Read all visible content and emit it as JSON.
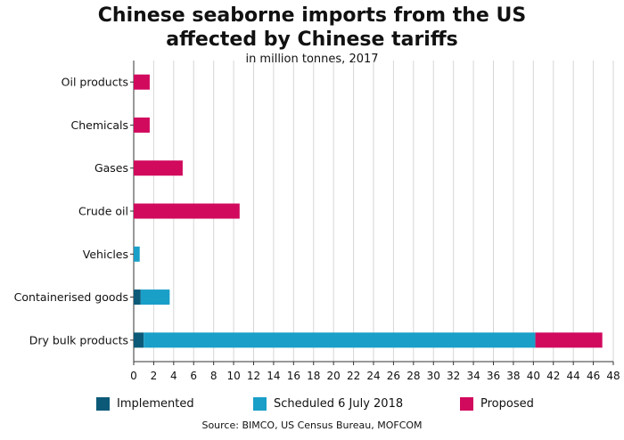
{
  "chart_data": {
    "type": "bar",
    "orientation": "horizontal",
    "stacked": true,
    "title_lines": [
      "Chinese seaborne imports from the US",
      "affected by Chinese tariffs"
    ],
    "subtitle": "in million tonnes, 2017",
    "categories": [
      "Oil products",
      "Chemicals",
      "Gases",
      "Crude oil",
      "Vehicles",
      "Containerised goods",
      "Dry bulk products"
    ],
    "series": [
      {
        "name": "Implemented",
        "color": "#0c5a78",
        "values": [
          0,
          0,
          0,
          0,
          0,
          0.7,
          1.0
        ]
      },
      {
        "name": "Scheduled 6 July 2018",
        "color": "#1a9fc8",
        "values": [
          0,
          0,
          0,
          0,
          0.6,
          2.9,
          39.2
        ]
      },
      {
        "name": "Proposed",
        "color": "#d10a5e",
        "values": [
          1.6,
          1.6,
          4.9,
          10.6,
          0,
          0,
          6.7
        ]
      }
    ],
    "xlim": [
      0,
      48
    ],
    "xticks": [
      "0",
      "2",
      "4",
      "6",
      "8",
      "10",
      "12",
      "14",
      "16",
      "18",
      "20",
      "22",
      "24",
      "26",
      "28",
      "30",
      "32",
      "34",
      "36",
      "38",
      "40",
      "42",
      "44",
      "46",
      "48"
    ],
    "grid": "vertical",
    "legend_position": "bottom",
    "source": "Source: BIMCO, US Census Bureau, MOFCOM"
  }
}
